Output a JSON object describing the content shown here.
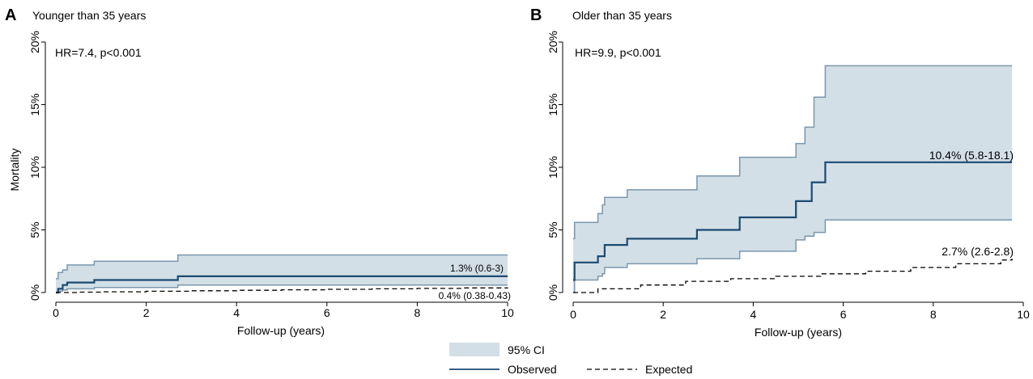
{
  "colors": {
    "ci_fill": "#d3dfe6",
    "ci_line": "#7a97ad",
    "observed": "#1b4a72",
    "expected": "#000000",
    "axis": "#000000"
  },
  "legend": {
    "ci_label": "95% CI",
    "observed_label": "Observed",
    "expected_label": "Expected"
  },
  "chart_data": [
    {
      "type": "line",
      "panel_letter": "A",
      "title": "Younger than 35 years",
      "xlabel": "Follow-up (years)",
      "ylabel": "Mortality",
      "xlim": [
        0,
        10
      ],
      "ylim": [
        0,
        20
      ],
      "x_ticks": [
        "0",
        "2",
        "4",
        "6",
        "8",
        "10"
      ],
      "y_ticks": [
        "0%",
        "5%",
        "10%",
        "15%",
        "20%"
      ],
      "annotation_hr": "HR=7.4, p<0.001",
      "label_observed": "1.3% (0.6-3)",
      "label_expected": "0.4% (0.38-0.43)",
      "series": [
        {
          "name": "95% CI",
          "kind": "band",
          "x": [
            0,
            0.05,
            0.15,
            0.25,
            0.85,
            2.7,
            10
          ],
          "lower": [
            0,
            0.1,
            0.2,
            0.3,
            0.4,
            0.6,
            0.6
          ],
          "upper": [
            1.1,
            1.6,
            1.8,
            2.2,
            2.5,
            3.0,
            3.0
          ]
        },
        {
          "name": "Observed",
          "kind": "step",
          "x": [
            0,
            0.05,
            0.15,
            0.25,
            0.85,
            2.7,
            10
          ],
          "y": [
            0,
            0.3,
            0.6,
            0.8,
            1.0,
            1.3,
            1.3
          ]
        },
        {
          "name": "Expected",
          "kind": "step",
          "x": [
            0,
            0.5,
            1,
            2,
            3,
            4,
            5,
            6,
            7,
            8,
            9,
            10
          ],
          "y": [
            0,
            0.03,
            0.06,
            0.1,
            0.14,
            0.18,
            0.22,
            0.26,
            0.3,
            0.33,
            0.37,
            0.4
          ]
        }
      ]
    },
    {
      "type": "line",
      "panel_letter": "B",
      "title": "Older than 35 years",
      "xlabel": "Follow-up (years)",
      "ylabel": "",
      "xlim": [
        0,
        10
      ],
      "ylim": [
        0,
        20
      ],
      "x_ticks": [
        "0",
        "2",
        "4",
        "6",
        "8",
        "10"
      ],
      "y_ticks": [
        "0%",
        "5%",
        "10%",
        "15%",
        "20%"
      ],
      "annotation_hr": "HR=9.9, p<0.001",
      "label_observed": "10.4% (5.8-18.1)",
      "label_expected": "2.7% (2.6-2.8)",
      "series": [
        {
          "name": "95% CI",
          "kind": "band",
          "x": [
            0,
            0.03,
            0.55,
            0.65,
            0.7,
            1.2,
            2.75,
            3.7,
            4.95,
            5.15,
            5.35,
            5.6,
            9.75
          ],
          "lower": [
            0,
            1.0,
            1.3,
            1.5,
            2.0,
            2.3,
            2.7,
            3.3,
            4.2,
            4.5,
            4.8,
            5.8,
            5.8
          ],
          "upper": [
            4.3,
            5.6,
            6.3,
            7.0,
            7.6,
            8.2,
            9.3,
            10.8,
            11.9,
            13.2,
            15.6,
            18.1,
            18.1
          ]
        },
        {
          "name": "Observed",
          "kind": "step",
          "x": [
            0,
            0.03,
            0.55,
            0.7,
            1.2,
            2.75,
            3.7,
            4.95,
            5.3,
            5.6,
            9.75
          ],
          "y": [
            1.0,
            2.4,
            2.9,
            3.8,
            4.3,
            5.0,
            6.0,
            7.3,
            8.8,
            10.4,
            10.4
          ]
        },
        {
          "name": "Expected",
          "kind": "step",
          "x": [
            0,
            0.55,
            1.5,
            2.5,
            3.5,
            4.5,
            5.5,
            6.5,
            7.5,
            8.5,
            9.5,
            9.75
          ],
          "y": [
            0,
            0.3,
            0.6,
            0.9,
            1.1,
            1.3,
            1.5,
            1.7,
            2.0,
            2.3,
            2.6,
            2.7
          ]
        }
      ]
    }
  ]
}
